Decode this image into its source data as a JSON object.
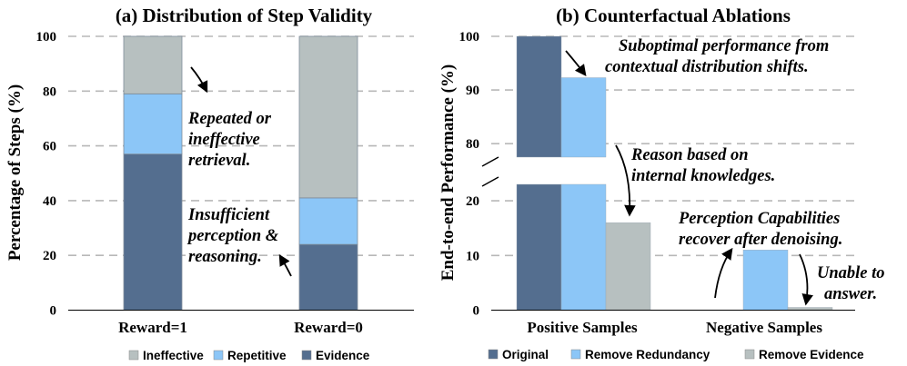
{
  "chart_data": [
    {
      "type": "bar",
      "stacked": true,
      "title": "(a) Distribution of Step Validity",
      "ylabel": "Percentage of Steps (%)",
      "xlabel": "",
      "ylim": [
        0,
        100
      ],
      "yticks": [
        "0",
        "20",
        "40",
        "60",
        "80",
        "100"
      ],
      "grid": true,
      "categories": [
        "Reward=1",
        "Reward=0"
      ],
      "series": [
        {
          "name": "Evidence",
          "values": [
            57,
            24
          ],
          "color": "#546e8f"
        },
        {
          "name": "Repetitive",
          "values": [
            22,
            17
          ],
          "color": "#8cc6f7"
        },
        {
          "name": "Ineffective",
          "values": [
            21,
            59
          ],
          "color": "#b7c0c0"
        }
      ],
      "legend": [
        "Ineffective",
        "Repetitive",
        "Evidence"
      ],
      "legend_position": "bottom",
      "annotations": [
        {
          "lines": [
            "Repeated or",
            "ineffective",
            "retrieval."
          ]
        },
        {
          "lines": [
            "Insufficient",
            "perception &",
            "reasoning."
          ]
        }
      ]
    },
    {
      "type": "bar",
      "title": "(b) Counterfactual Ablations",
      "ylabel": "End-to-end Performance (%)",
      "xlabel": "",
      "broken_axis": true,
      "ylim_lower": [
        0,
        23
      ],
      "ylim_upper": [
        77.5,
        100
      ],
      "yticks_lower": [
        "0",
        "10",
        "20"
      ],
      "yticks_upper": [
        "80",
        "90",
        "100"
      ],
      "grid": true,
      "categories": [
        "Positive Samples",
        "Negative Samples"
      ],
      "series": [
        {
          "name": "Original",
          "values": [
            100,
            0
          ],
          "color": "#546e8f"
        },
        {
          "name": "Remove Redundancy",
          "values": [
            92.3,
            11
          ],
          "color": "#8cc6f7"
        },
        {
          "name": "Remove Evidence",
          "values": [
            16,
            0.5
          ],
          "color": "#b7c0c0"
        }
      ],
      "legend": [
        "Original",
        "Remove Redundancy",
        "Remove Evidence"
      ],
      "legend_position": "bottom",
      "annotations": [
        {
          "lines": [
            "Suboptimal performance from",
            "contextual distribution shifts."
          ]
        },
        {
          "lines": [
            "Reason based on",
            "internal knowledges."
          ]
        },
        {
          "lines": [
            "Perception Capabilities",
            "recover after denoising."
          ]
        },
        {
          "lines": [
            "Unable to",
            "answer."
          ]
        }
      ]
    }
  ]
}
